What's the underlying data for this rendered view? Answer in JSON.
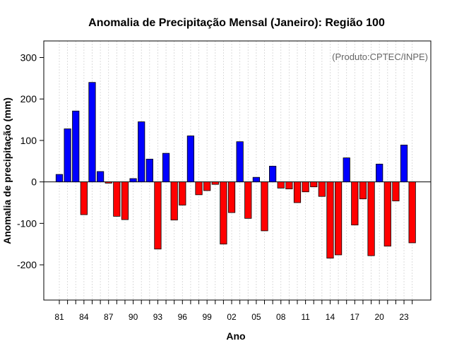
{
  "chart_data": {
    "type": "bar",
    "title": "Anomalia de Precipitação Mensal (Janeiro): Região 100",
    "xlabel": "Ano",
    "ylabel": "Anomalia de precipitação (mm)",
    "annotation": "(Produto:CPTEC/INPE)",
    "ylim": [
      -285,
      340
    ],
    "yticks": [
      -200,
      -100,
      0,
      100,
      200,
      300
    ],
    "yticklabels": [
      "-200",
      "-100",
      "0",
      "100",
      "200",
      "300"
    ],
    "grid": true,
    "positive_color": "#0000ff",
    "negative_color": "#ff0000",
    "categories": [
      "1981",
      "1982",
      "1983",
      "1984",
      "1985",
      "1986",
      "1987",
      "1988",
      "1989",
      "1990",
      "1991",
      "1992",
      "1993",
      "1994",
      "1995",
      "1996",
      "1997",
      "1998",
      "1999",
      "2000",
      "2001",
      "2002",
      "2003",
      "2004",
      "2005",
      "2006",
      "2007",
      "2008",
      "2009",
      "2010",
      "2011",
      "2012",
      "2013",
      "2014",
      "2015",
      "2016",
      "2017",
      "2018",
      "2019",
      "2020",
      "2021",
      "2022",
      "2023",
      "2024"
    ],
    "values": [
      18,
      128,
      171,
      -79,
      240,
      25,
      -3,
      -83,
      -91,
      8,
      145,
      55,
      -162,
      69,
      -92,
      -56,
      111,
      -31,
      -21,
      -6,
      -150,
      -74,
      97,
      -88,
      11,
      -118,
      38,
      -15,
      -17,
      -50,
      -24,
      -12,
      -35,
      -184,
      -176,
      58,
      -104,
      -41,
      -178,
      43,
      -155,
      -46,
      89,
      -147
    ],
    "xtick_labels": [
      {
        "index": 0,
        "label": "81"
      },
      {
        "index": 3,
        "label": "84"
      },
      {
        "index": 6,
        "label": "87"
      },
      {
        "index": 9,
        "label": "90"
      },
      {
        "index": 12,
        "label": "93"
      },
      {
        "index": 15,
        "label": "96"
      },
      {
        "index": 18,
        "label": "99"
      },
      {
        "index": 21,
        "label": "02"
      },
      {
        "index": 24,
        "label": "05"
      },
      {
        "index": 27,
        "label": "08"
      },
      {
        "index": 30,
        "label": "11"
      },
      {
        "index": 33,
        "label": "14"
      },
      {
        "index": 36,
        "label": "17"
      },
      {
        "index": 39,
        "label": "20"
      },
      {
        "index": 42,
        "label": "23"
      }
    ]
  }
}
